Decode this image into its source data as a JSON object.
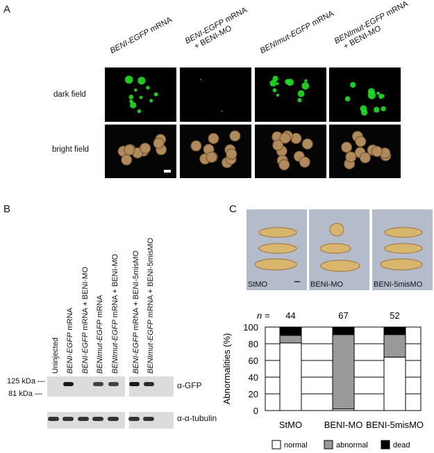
{
  "panel_a": {
    "label": "A",
    "columns": [
      {
        "italic": "BENI-EGFP",
        "rest": " mRNA",
        "line2": ""
      },
      {
        "italic": "BENI-EGFP",
        "rest": " mRNA",
        "line2": "+ BENI-MO"
      },
      {
        "italic": "BENImut-EGFP",
        "rest": " mRNA",
        "line2": ""
      },
      {
        "italic": "BENImut-EGFP",
        "rest": " mRNA",
        "line2": "+ BENI-MO"
      }
    ],
    "rows": [
      "dark field",
      "bright field"
    ]
  },
  "panel_b": {
    "label": "B",
    "lanes": [
      {
        "italic": "",
        "rest": "Uninjected"
      },
      {
        "italic": "BENI-EGFP",
        "rest": " mRNA"
      },
      {
        "italic": "BENI-EGFP",
        "rest": " mRNA + BENI-MO"
      },
      {
        "italic": "BENImut-EGFP",
        "rest": " mRNA"
      },
      {
        "italic": "BENImut-EGFP",
        "rest": " mRNA + BENI-MO"
      },
      {
        "italic": "BENI-EGFP",
        "rest": " mRNA + BENI-5misMO"
      },
      {
        "italic": "BENImut-EGFP",
        "rest": " mRNA + BENI-5misMO"
      }
    ],
    "markers": [
      "125 kDa",
      "81 kDa"
    ],
    "antibodies": [
      "α-GFP",
      "α-α-tubulin"
    ]
  },
  "panel_c": {
    "label": "C",
    "photos": [
      "StMO",
      "BENI-MO",
      "BENI-5misMO"
    ]
  },
  "chart_data": {
    "type": "bar",
    "stacked": true,
    "categories": [
      "StMO",
      "BENI-MO",
      "BENI-5misMO"
    ],
    "n_label": "n =",
    "n_values": [
      "44",
      "67",
      "52"
    ],
    "ylabel": "Abnormalities (%)",
    "ylim": [
      0,
      100
    ],
    "yticks": [
      "0",
      "20",
      "40",
      "60",
      "80",
      "100"
    ],
    "grid": true,
    "legend_position": "bottom",
    "series": [
      {
        "name": "normal",
        "color": "#ffffff",
        "values": [
          81,
          2,
          64
        ]
      },
      {
        "name": "abnormal",
        "color": "#999999",
        "values": [
          9,
          89,
          27
        ]
      },
      {
        "name": "dead",
        "color": "#000000",
        "values": [
          10,
          9,
          9
        ]
      }
    ]
  }
}
